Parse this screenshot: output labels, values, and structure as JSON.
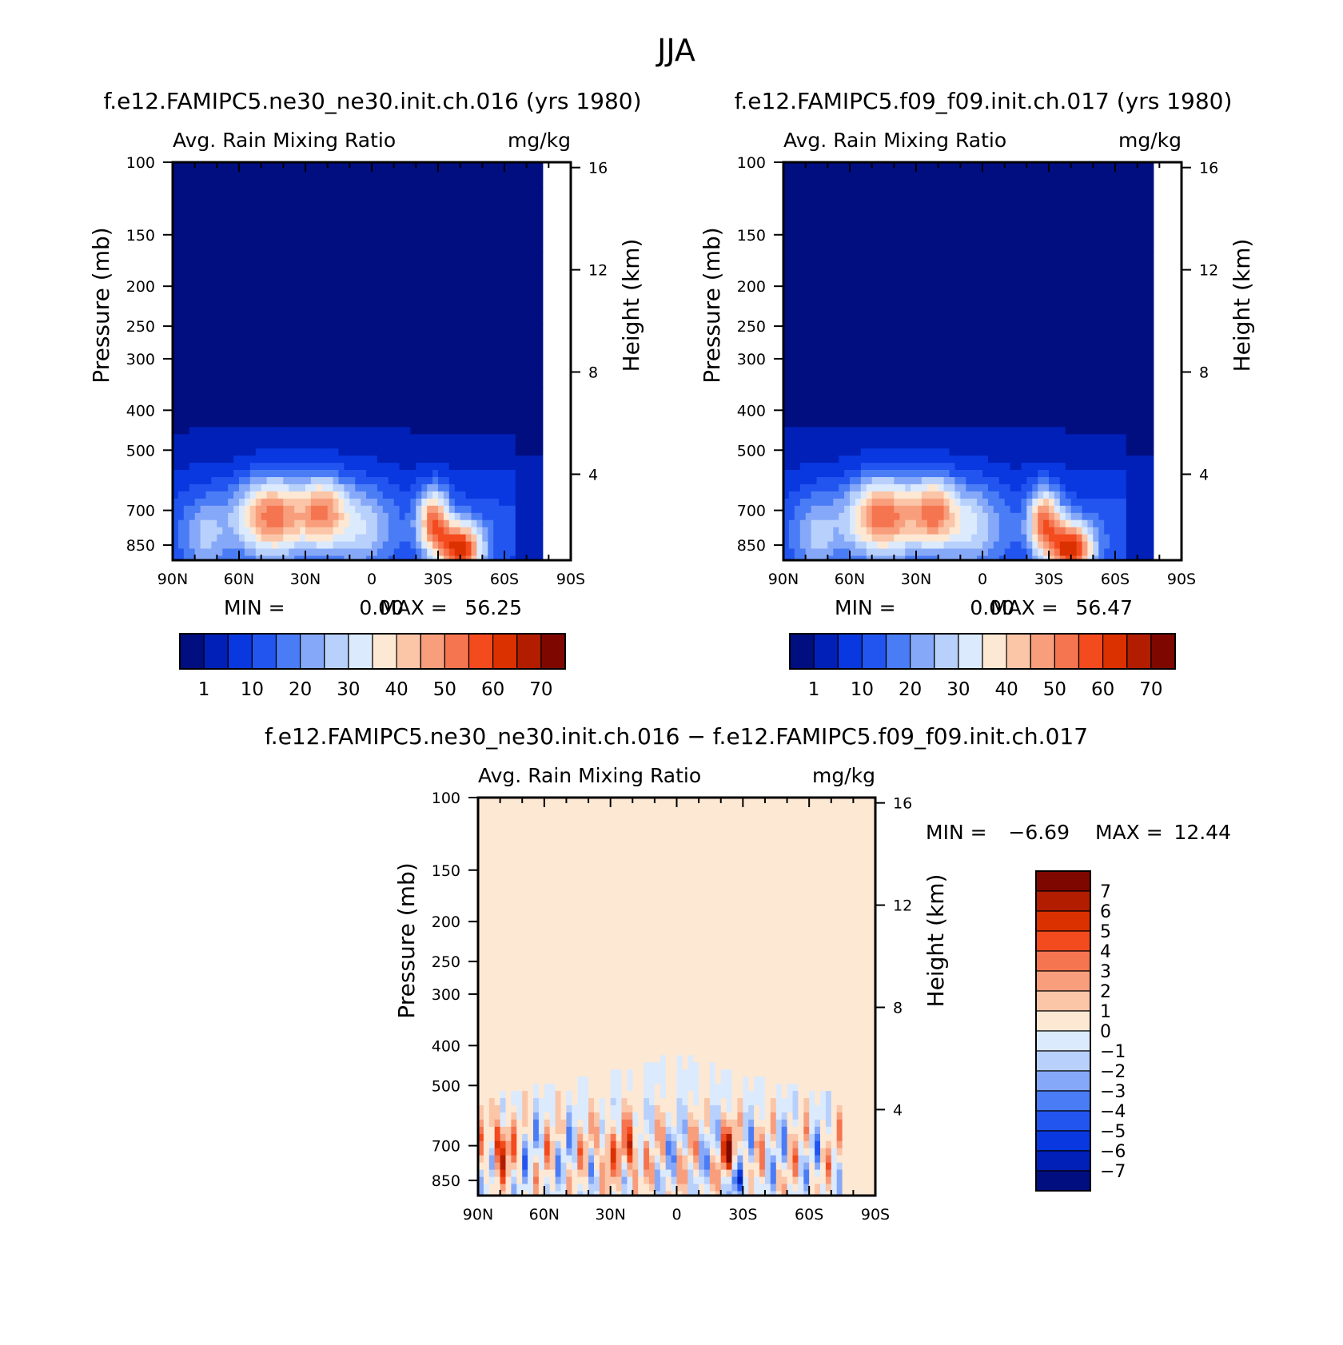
{
  "figure_title": "JJA",
  "chart_data": [
    {
      "type": "heatmap",
      "title": "f.e12.FAMIPC5.ne30_ne30.init.ch.016 (yrs 1980)",
      "subtitle_left": "Avg. Rain Mixing Ratio",
      "subtitle_right": "mg/kg",
      "ylabel": "Pressure (mb)",
      "ylabel_right": "Height (km)",
      "x_ticks": [
        "90N",
        "60N",
        "30N",
        "0",
        "30S",
        "60S",
        "90S"
      ],
      "x_values": [
        90,
        60,
        30,
        0,
        -30,
        -60,
        -90
      ],
      "y_ticks": [
        "100",
        "150",
        "200",
        "250",
        "300",
        "400",
        "500",
        "700",
        "850"
      ],
      "y_values": [
        100,
        150,
        200,
        250,
        300,
        400,
        500,
        700,
        850
      ],
      "y_right_ticks": [
        "16",
        "12",
        "8",
        "4"
      ],
      "y_right_values": [
        16,
        12,
        8,
        4
      ],
      "ylim": [
        100,
        925
      ],
      "y_scale": "log",
      "min_label": "MIN =",
      "min_value": "0.00",
      "max_label": "MAX =",
      "max_value": "56.25",
      "colorbar_orientation": "horizontal",
      "colorbar_labels": [
        "1",
        "10",
        "20",
        "30",
        "40",
        "50",
        "60",
        "70"
      ],
      "colorbar_colors": [
        "#000e80",
        "#0020b8",
        "#0938e0",
        "#2255f0",
        "#4a7cf5",
        "#86a8f8",
        "#b8d0fc",
        "#dbeafd",
        "#fde8d4",
        "#fbc5a8",
        "#f89e7c",
        "#f57550",
        "#f34a1e",
        "#db3100",
        "#b21d00",
        "#7e0800"
      ]
    },
    {
      "type": "heatmap",
      "title": "f.e12.FAMIPC5.f09_f09.init.ch.017 (yrs 1980)",
      "subtitle_left": "Avg. Rain Mixing Ratio",
      "subtitle_right": "mg/kg",
      "ylabel": "Pressure (mb)",
      "ylabel_right": "Height (km)",
      "x_ticks": [
        "90N",
        "60N",
        "30N",
        "0",
        "30S",
        "60S",
        "90S"
      ],
      "x_values": [
        90,
        60,
        30,
        0,
        -30,
        -60,
        -90
      ],
      "y_ticks": [
        "100",
        "150",
        "200",
        "250",
        "300",
        "400",
        "500",
        "700",
        "850"
      ],
      "y_values": [
        100,
        150,
        200,
        250,
        300,
        400,
        500,
        700,
        850
      ],
      "y_right_ticks": [
        "16",
        "12",
        "8",
        "4"
      ],
      "y_right_values": [
        16,
        12,
        8,
        4
      ],
      "ylim": [
        100,
        925
      ],
      "y_scale": "log",
      "min_label": "MIN =",
      "min_value": "0.00",
      "max_label": "MAX =",
      "max_value": "56.47",
      "colorbar_orientation": "horizontal",
      "colorbar_labels": [
        "1",
        "10",
        "20",
        "30",
        "40",
        "50",
        "60",
        "70"
      ],
      "colorbar_colors": [
        "#000e80",
        "#0020b8",
        "#0938e0",
        "#2255f0",
        "#4a7cf5",
        "#86a8f8",
        "#b8d0fc",
        "#dbeafd",
        "#fde8d4",
        "#fbc5a8",
        "#f89e7c",
        "#f57550",
        "#f34a1e",
        "#db3100",
        "#b21d00",
        "#7e0800"
      ]
    },
    {
      "type": "heatmap",
      "title": "f.e12.FAMIPC5.ne30_ne30.init.ch.016 − f.e12.FAMIPC5.f09_f09.init.ch.017",
      "subtitle_left": "Avg. Rain Mixing Ratio",
      "subtitle_right": "mg/kg",
      "ylabel": "Pressure (mb)",
      "ylabel_right": "Height (km)",
      "x_ticks": [
        "90N",
        "60N",
        "30N",
        "0",
        "30S",
        "60S",
        "90S"
      ],
      "x_values": [
        90,
        60,
        30,
        0,
        -30,
        -60,
        -90
      ],
      "y_ticks": [
        "100",
        "150",
        "200",
        "250",
        "300",
        "400",
        "500",
        "700",
        "850"
      ],
      "y_values": [
        100,
        150,
        200,
        250,
        300,
        400,
        500,
        700,
        850
      ],
      "y_right_ticks": [
        "16",
        "12",
        "8",
        "4"
      ],
      "y_right_values": [
        16,
        12,
        8,
        4
      ],
      "ylim": [
        100,
        925
      ],
      "y_scale": "log",
      "min_label": "MIN =",
      "min_value": "−6.69",
      "max_label": "MAX =",
      "max_value": "12.44",
      "colorbar_orientation": "vertical",
      "colorbar_labels": [
        "7",
        "6",
        "5",
        "4",
        "3",
        "2",
        "1",
        "0",
        "−1",
        "−2",
        "−3",
        "−4",
        "−5",
        "−6",
        "−7"
      ],
      "colorbar_colors": [
        "#7e0800",
        "#b21d00",
        "#db3100",
        "#f34a1e",
        "#f57550",
        "#f89e7c",
        "#fbc5a8",
        "#fde8d4",
        "#dbeafd",
        "#b8d0fc",
        "#86a8f8",
        "#4a7cf5",
        "#2255f0",
        "#0938e0",
        "#0020b8",
        "#000e80"
      ]
    }
  ]
}
